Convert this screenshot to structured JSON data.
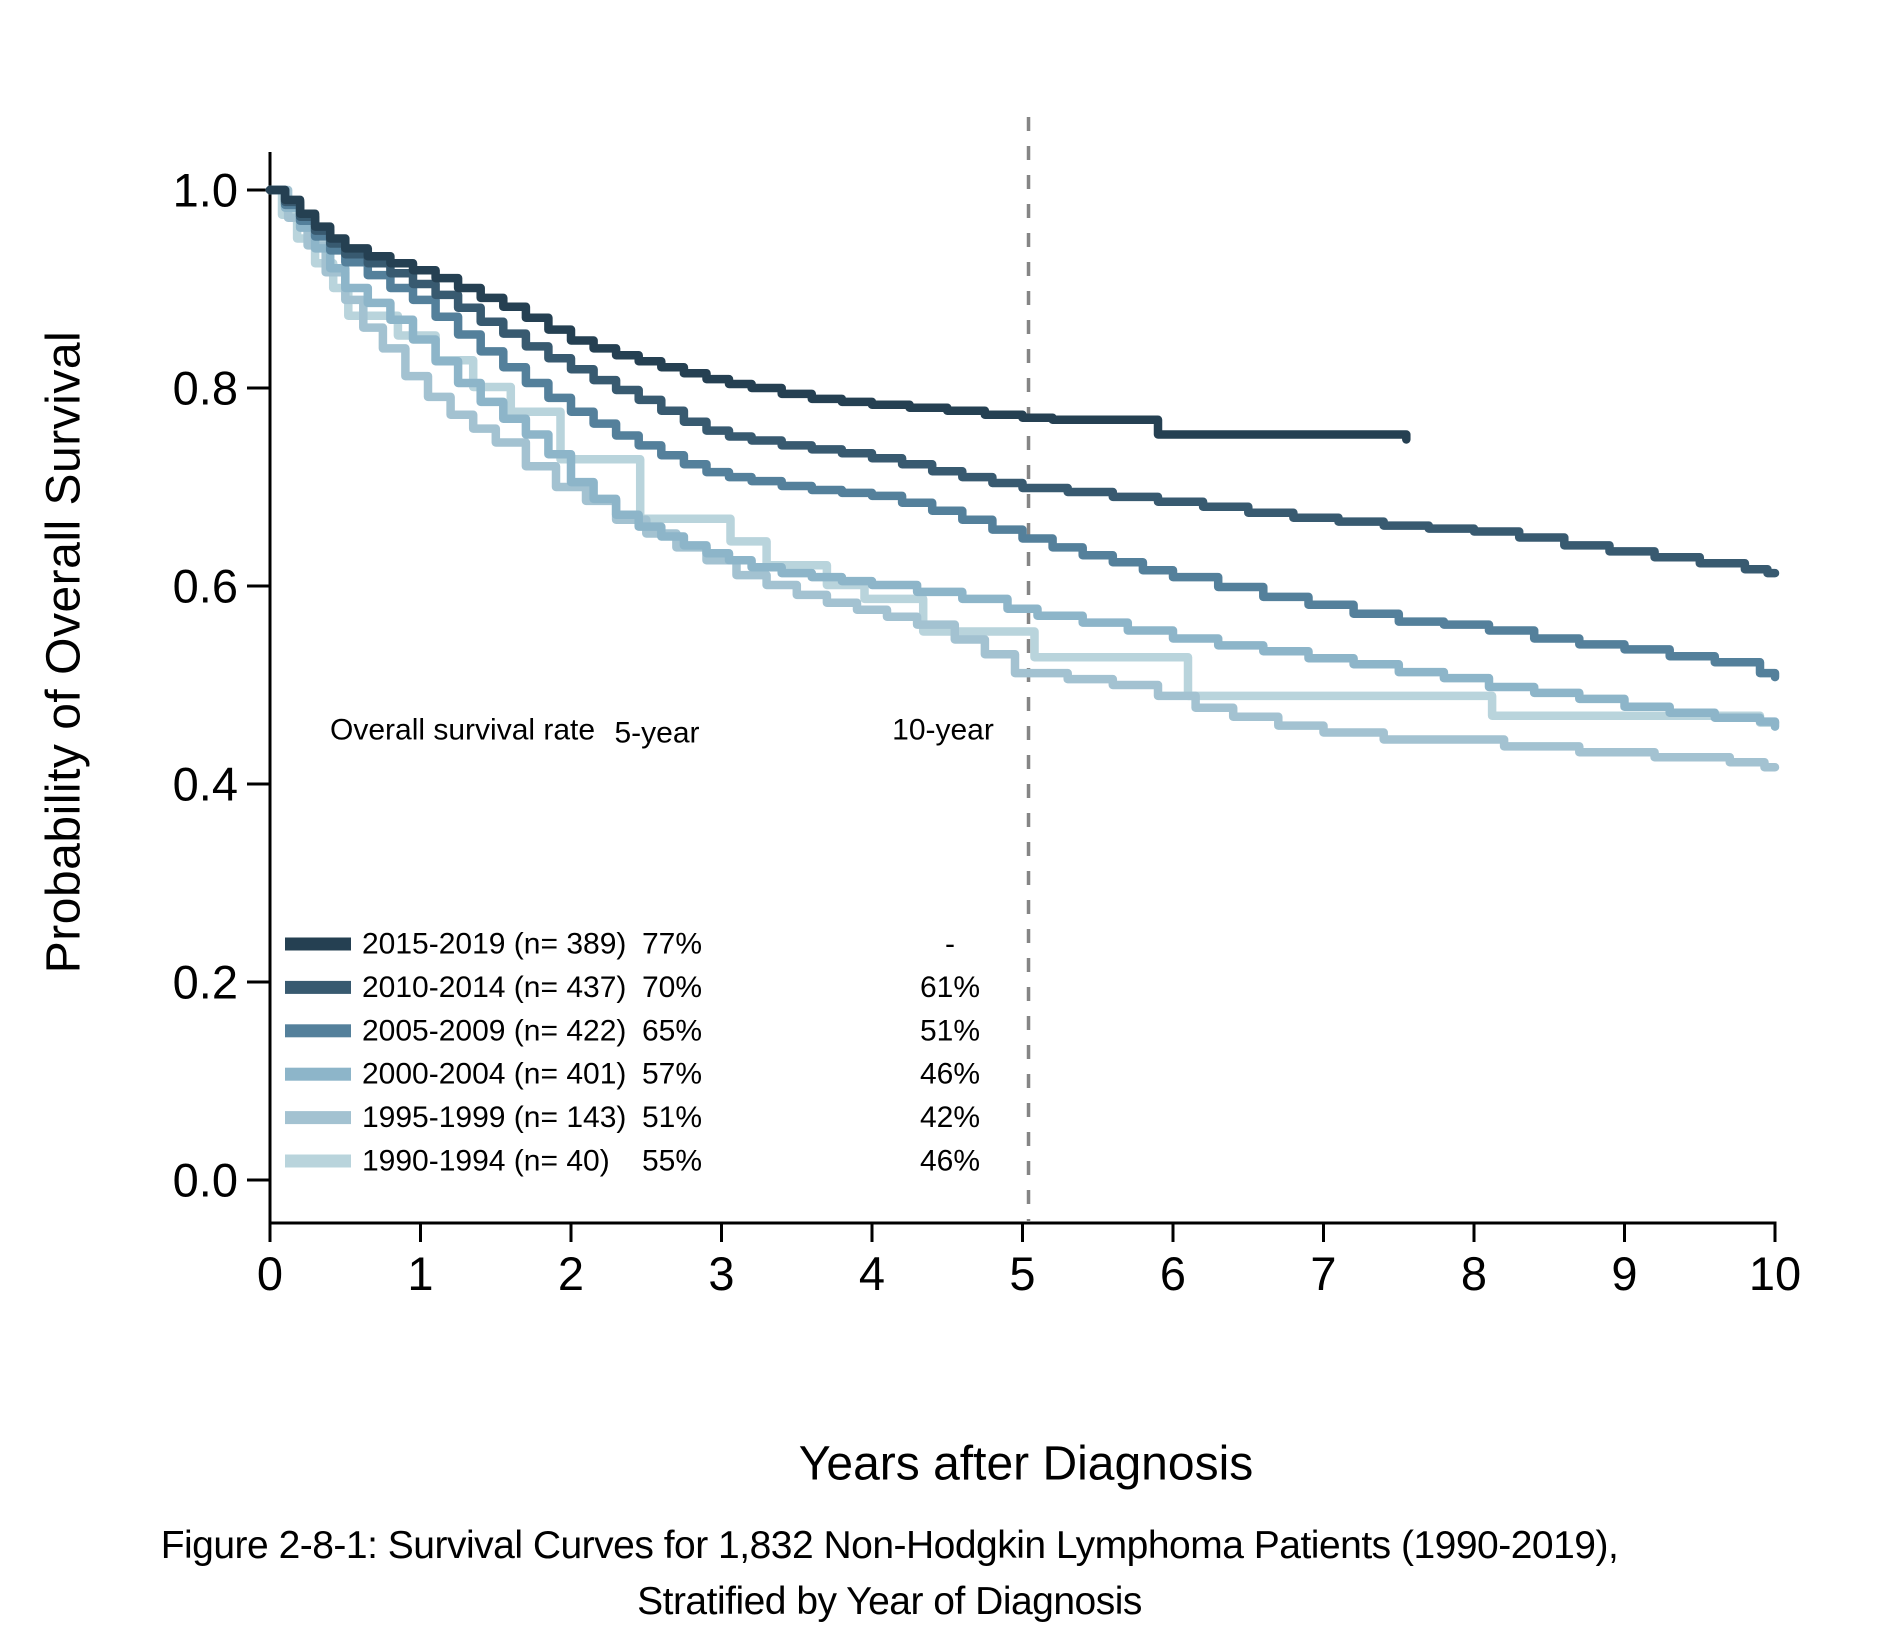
{
  "figure": {
    "y_axis_title": "Probability of Overall Survival",
    "x_axis_title": "Years after Diagnosis",
    "caption_line1": "Figure 2-8-1: Survival Curves for 1,832 Non-Hodgkin Lymphoma Patients (1990-2019),",
    "caption_line2": "Stratified by Year of Diagnosis"
  },
  "chart_data": {
    "type": "line",
    "subtype": "kaplan-meier-step",
    "title": "",
    "xlabel": "Years after Diagnosis",
    "ylabel": "Probability of Overall Survival",
    "xlim": [
      0,
      10
    ],
    "ylim": [
      0.0,
      1.0
    ],
    "grid": false,
    "x_ticks": [
      0,
      1,
      2,
      3,
      4,
      5,
      6,
      7,
      8,
      9,
      10
    ],
    "y_ticks": [
      1.0,
      0.8,
      0.6,
      0.4,
      0.2,
      0.0
    ],
    "y_tick_labels": [
      "1.0",
      "0.8",
      "0.6",
      "0.4",
      "0.2",
      "0.0"
    ],
    "x_tick_labels": [
      "0",
      "1",
      "2",
      "3",
      "4",
      "5",
      "6",
      "7",
      "8",
      "9",
      "10"
    ],
    "reference_line": {
      "x": 5.04,
      "style": "dashed",
      "color": "#858585"
    },
    "axis_color": "#000000",
    "legend": {
      "position": "lower-left-inside",
      "header": [
        "Overall survival rate",
        "5-year",
        "10-year"
      ]
    },
    "series": [
      {
        "name": "2015-2019",
        "legend_label": "2015-2019 (n= 389)",
        "n": 389,
        "five_year": "77%",
        "ten_year": "-",
        "color": "#254052",
        "points": [
          [
            0,
            1
          ],
          [
            0.1,
            0.99
          ],
          [
            0.2,
            0.976
          ],
          [
            0.3,
            0.963
          ],
          [
            0.4,
            0.951
          ],
          [
            0.5,
            0.941
          ],
          [
            0.65,
            0.933
          ],
          [
            0.8,
            0.926
          ],
          [
            0.95,
            0.919
          ],
          [
            1.1,
            0.911
          ],
          [
            1.25,
            0.901
          ],
          [
            1.4,
            0.891
          ],
          [
            1.55,
            0.882
          ],
          [
            1.7,
            0.871
          ],
          [
            1.85,
            0.859
          ],
          [
            2,
            0.848
          ],
          [
            2.15,
            0.84
          ],
          [
            2.3,
            0.833
          ],
          [
            2.45,
            0.827
          ],
          [
            2.6,
            0.821
          ],
          [
            2.75,
            0.815
          ],
          [
            2.9,
            0.809
          ],
          [
            3.05,
            0.804
          ],
          [
            3.2,
            0.8
          ],
          [
            3.4,
            0.794
          ],
          [
            3.6,
            0.789
          ],
          [
            3.8,
            0.786
          ],
          [
            4,
            0.783
          ],
          [
            4.25,
            0.78
          ],
          [
            4.5,
            0.777
          ],
          [
            4.75,
            0.773
          ],
          [
            5,
            0.77
          ],
          [
            5.2,
            0.768
          ],
          [
            5.9,
            0.753
          ],
          [
            7.5,
            0.753
          ],
          [
            7.55,
            0.748
          ]
        ]
      },
      {
        "name": "2010-2014",
        "legend_label": "2010-2014 (n= 437)",
        "n": 437,
        "five_year": "70%",
        "ten_year": "61%",
        "color": "#385a70",
        "points": [
          [
            0,
            1
          ],
          [
            0.1,
            0.988
          ],
          [
            0.2,
            0.973
          ],
          [
            0.3,
            0.959
          ],
          [
            0.4,
            0.946
          ],
          [
            0.5,
            0.935
          ],
          [
            0.65,
            0.926
          ],
          [
            0.8,
            0.916
          ],
          [
            0.95,
            0.905
          ],
          [
            1.1,
            0.894
          ],
          [
            1.25,
            0.881
          ],
          [
            1.4,
            0.867
          ],
          [
            1.55,
            0.855
          ],
          [
            1.7,
            0.842
          ],
          [
            1.85,
            0.83
          ],
          [
            2,
            0.819
          ],
          [
            2.15,
            0.808
          ],
          [
            2.3,
            0.798
          ],
          [
            2.45,
            0.788
          ],
          [
            2.6,
            0.777
          ],
          [
            2.75,
            0.766
          ],
          [
            2.9,
            0.757
          ],
          [
            3.05,
            0.751
          ],
          [
            3.2,
            0.747
          ],
          [
            3.4,
            0.742
          ],
          [
            3.6,
            0.738
          ],
          [
            3.8,
            0.734
          ],
          [
            4,
            0.729
          ],
          [
            4.2,
            0.723
          ],
          [
            4.4,
            0.716
          ],
          [
            4.6,
            0.71
          ],
          [
            4.8,
            0.704
          ],
          [
            5,
            0.699
          ],
          [
            5.3,
            0.695
          ],
          [
            5.6,
            0.69
          ],
          [
            5.9,
            0.685
          ],
          [
            6.2,
            0.68
          ],
          [
            6.5,
            0.674
          ],
          [
            6.8,
            0.669
          ],
          [
            7.1,
            0.665
          ],
          [
            7.4,
            0.661
          ],
          [
            7.7,
            0.658
          ],
          [
            8,
            0.655
          ],
          [
            8.3,
            0.649
          ],
          [
            8.6,
            0.641
          ],
          [
            8.9,
            0.635
          ],
          [
            9.2,
            0.629
          ],
          [
            9.5,
            0.623
          ],
          [
            9.8,
            0.617
          ],
          [
            9.95,
            0.613
          ],
          [
            10,
            0.613
          ]
        ]
      },
      {
        "name": "2005-2009",
        "legend_label": "2005-2009 (n= 422)",
        "n": 422,
        "five_year": "65%",
        "ten_year": "51%",
        "color": "#54809b",
        "points": [
          [
            0,
            1
          ],
          [
            0.1,
            0.985
          ],
          [
            0.2,
            0.969
          ],
          [
            0.3,
            0.953
          ],
          [
            0.4,
            0.939
          ],
          [
            0.5,
            0.927
          ],
          [
            0.65,
            0.914
          ],
          [
            0.8,
            0.901
          ],
          [
            0.95,
            0.889
          ],
          [
            1.1,
            0.872
          ],
          [
            1.25,
            0.854
          ],
          [
            1.4,
            0.837
          ],
          [
            1.55,
            0.821
          ],
          [
            1.7,
            0.805
          ],
          [
            1.85,
            0.79
          ],
          [
            2,
            0.776
          ],
          [
            2.15,
            0.764
          ],
          [
            2.3,
            0.752
          ],
          [
            2.45,
            0.742
          ],
          [
            2.6,
            0.732
          ],
          [
            2.75,
            0.723
          ],
          [
            2.9,
            0.715
          ],
          [
            3.05,
            0.71
          ],
          [
            3.2,
            0.706
          ],
          [
            3.4,
            0.701
          ],
          [
            3.6,
            0.697
          ],
          [
            3.8,
            0.694
          ],
          [
            4,
            0.691
          ],
          [
            4.2,
            0.684
          ],
          [
            4.4,
            0.676
          ],
          [
            4.6,
            0.667
          ],
          [
            4.8,
            0.657
          ],
          [
            5,
            0.648
          ],
          [
            5.2,
            0.639
          ],
          [
            5.4,
            0.631
          ],
          [
            5.6,
            0.624
          ],
          [
            5.8,
            0.616
          ],
          [
            6,
            0.609
          ],
          [
            6.3,
            0.599
          ],
          [
            6.6,
            0.589
          ],
          [
            6.9,
            0.581
          ],
          [
            7.2,
            0.572
          ],
          [
            7.5,
            0.564
          ],
          [
            7.8,
            0.561
          ],
          [
            8.1,
            0.555
          ],
          [
            8.4,
            0.547
          ],
          [
            8.7,
            0.541
          ],
          [
            9,
            0.536
          ],
          [
            9.3,
            0.529
          ],
          [
            9.6,
            0.523
          ],
          [
            9.9,
            0.512
          ],
          [
            10,
            0.508
          ]
        ]
      },
      {
        "name": "2000-2004",
        "legend_label": "2000-2004 (n= 401)",
        "n": 401,
        "five_year": "57%",
        "ten_year": "46%",
        "color": "#8db5c9",
        "points": [
          [
            0,
            1
          ],
          [
            0.1,
            0.982
          ],
          [
            0.2,
            0.962
          ],
          [
            0.3,
            0.941
          ],
          [
            0.4,
            0.921
          ],
          [
            0.5,
            0.901
          ],
          [
            0.65,
            0.886
          ],
          [
            0.8,
            0.869
          ],
          [
            0.95,
            0.849
          ],
          [
            1.1,
            0.827
          ],
          [
            1.25,
            0.805
          ],
          [
            1.4,
            0.786
          ],
          [
            1.55,
            0.769
          ],
          [
            1.7,
            0.753
          ],
          [
            1.85,
            0.733
          ],
          [
            2,
            0.705
          ],
          [
            2.15,
            0.688
          ],
          [
            2.3,
            0.672
          ],
          [
            2.45,
            0.66
          ],
          [
            2.6,
            0.65
          ],
          [
            2.75,
            0.641
          ],
          [
            2.9,
            0.633
          ],
          [
            3.05,
            0.626
          ],
          [
            3.2,
            0.619
          ],
          [
            3.4,
            0.613
          ],
          [
            3.6,
            0.609
          ],
          [
            3.8,
            0.605
          ],
          [
            4,
            0.601
          ],
          [
            4.3,
            0.594
          ],
          [
            4.6,
            0.587
          ],
          [
            4.9,
            0.577
          ],
          [
            5.1,
            0.57
          ],
          [
            5.4,
            0.563
          ],
          [
            5.7,
            0.555
          ],
          [
            6,
            0.547
          ],
          [
            6.3,
            0.54
          ],
          [
            6.6,
            0.534
          ],
          [
            6.9,
            0.527
          ],
          [
            7.2,
            0.521
          ],
          [
            7.5,
            0.513
          ],
          [
            7.8,
            0.507
          ],
          [
            8.1,
            0.498
          ],
          [
            8.4,
            0.492
          ],
          [
            8.7,
            0.486
          ],
          [
            9,
            0.478
          ],
          [
            9.3,
            0.472
          ],
          [
            9.6,
            0.467
          ],
          [
            9.9,
            0.463
          ],
          [
            10,
            0.458
          ]
        ]
      },
      {
        "name": "1995-1999",
        "legend_label": "1995-1999 (n= 143)",
        "n": 143,
        "five_year": "51%",
        "ten_year": "42%",
        "color": "#a3c2d1",
        "points": [
          [
            0,
            1
          ],
          [
            0.12,
            0.972
          ],
          [
            0.25,
            0.944
          ],
          [
            0.37,
            0.917
          ],
          [
            0.5,
            0.889
          ],
          [
            0.62,
            0.861
          ],
          [
            0.75,
            0.84
          ],
          [
            0.9,
            0.812
          ],
          [
            1.05,
            0.791
          ],
          [
            1.2,
            0.773
          ],
          [
            1.35,
            0.759
          ],
          [
            1.5,
            0.745
          ],
          [
            1.7,
            0.721
          ],
          [
            1.9,
            0.7
          ],
          [
            2.1,
            0.686
          ],
          [
            2.3,
            0.667
          ],
          [
            2.5,
            0.653
          ],
          [
            2.7,
            0.639
          ],
          [
            2.9,
            0.626
          ],
          [
            3.1,
            0.611
          ],
          [
            3.3,
            0.601
          ],
          [
            3.5,
            0.591
          ],
          [
            3.7,
            0.583
          ],
          [
            3.9,
            0.576
          ],
          [
            4.1,
            0.569
          ],
          [
            4.3,
            0.561
          ],
          [
            4.55,
            0.546
          ],
          [
            4.75,
            0.531
          ],
          [
            4.95,
            0.512
          ],
          [
            5.3,
            0.506
          ],
          [
            5.6,
            0.5
          ],
          [
            5.9,
            0.489
          ],
          [
            6.15,
            0.477
          ],
          [
            6.4,
            0.468
          ],
          [
            6.7,
            0.459
          ],
          [
            7,
            0.452
          ],
          [
            7.4,
            0.445
          ],
          [
            8.2,
            0.438
          ],
          [
            8.7,
            0.432
          ],
          [
            9.2,
            0.427
          ],
          [
            9.7,
            0.422
          ],
          [
            9.93,
            0.417
          ],
          [
            10,
            0.417
          ]
        ]
      },
      {
        "name": "1990-1994",
        "legend_label": "1990-1994 (n= 40)",
        "n": 40,
        "five_year": "55%",
        "ten_year": "46%",
        "color": "#b9d4dc",
        "points": [
          [
            0,
            1
          ],
          [
            0.08,
            0.975
          ],
          [
            0.18,
            0.951
          ],
          [
            0.3,
            0.926
          ],
          [
            0.42,
            0.901
          ],
          [
            0.52,
            0.873
          ],
          [
            0.85,
            0.853
          ],
          [
            1.1,
            0.828
          ],
          [
            1.35,
            0.801
          ],
          [
            1.6,
            0.776
          ],
          [
            1.93,
            0.728
          ],
          [
            2.46,
            0.668
          ],
          [
            3.06,
            0.645
          ],
          [
            3.3,
            0.621
          ],
          [
            3.7,
            0.601
          ],
          [
            3.95,
            0.587
          ],
          [
            4.34,
            0.554
          ],
          [
            5.08,
            0.528
          ],
          [
            6.1,
            0.489
          ],
          [
            8.12,
            0.469
          ],
          [
            9.9,
            0.462
          ],
          [
            10,
            0.462
          ]
        ]
      }
    ]
  }
}
